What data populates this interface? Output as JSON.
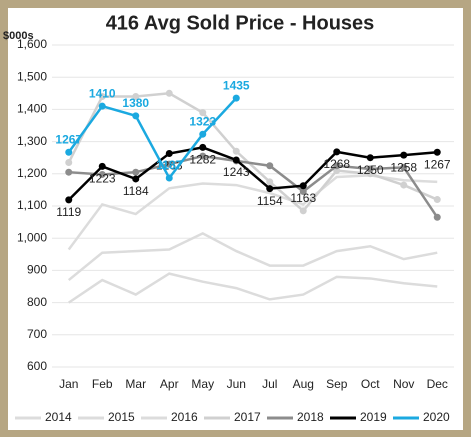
{
  "chart_data": {
    "type": "line",
    "title": "416 Avg Sold Price - Houses",
    "y_label": "$000s",
    "categories": [
      "Jan",
      "Feb",
      "Mar",
      "Apr",
      "May",
      "Jun",
      "Jul",
      "Aug",
      "Sep",
      "Oct",
      "Nov",
      "Dec"
    ],
    "ylim": [
      600,
      1600
    ],
    "yticks": [
      600,
      700,
      800,
      900,
      {
        "value": 1000,
        "label": "1,000"
      },
      {
        "value": 1100,
        "label": "1,100"
      },
      {
        "value": 1200,
        "label": "1,200"
      },
      {
        "value": 1300,
        "label": "1,300"
      },
      {
        "value": 1400,
        "label": "1,400"
      },
      {
        "value": 1500,
        "label": "1,500"
      },
      {
        "value": 1600,
        "label": "1,600"
      }
    ],
    "grid": true,
    "series": [
      {
        "name": "2014",
        "color": "#dcdcdc",
        "values": [
          800,
          870,
          825,
          890,
          865,
          845,
          810,
          825,
          880,
          875,
          860,
          850
        ]
      },
      {
        "name": "2015",
        "color": "#dcdcdc",
        "values": [
          870,
          955,
          960,
          965,
          1015,
          960,
          915,
          915,
          960,
          975,
          935,
          955
        ]
      },
      {
        "name": "2016",
        "color": "#dcdcdc",
        "values": [
          965,
          1105,
          1075,
          1155,
          1170,
          1165,
          1140,
          1105,
          1190,
          1195,
          1180,
          1175
        ]
      },
      {
        "name": "2017",
        "color": "#d0d0d0",
        "marker": true,
        "values": [
          1235,
          1440,
          1440,
          1450,
          1390,
          1270,
          1175,
          1085,
          1210,
          1200,
          1165,
          1120
        ]
      },
      {
        "name": "2018",
        "color": "#8c8c8c",
        "marker": true,
        "values": [
          1205,
          1198,
          1205,
          1230,
          1255,
          1240,
          1225,
          1145,
          1225,
          1215,
          1220,
          1065
        ]
      },
      {
        "name": "2019",
        "color": "#000000",
        "marker": true,
        "labels": true,
        "values": [
          1119,
          1223,
          1184,
          1263,
          1282,
          1243,
          1154,
          1163,
          1268,
          1250,
          1258,
          1267
        ]
      },
      {
        "name": "2020",
        "color": "#1ba9e0",
        "marker": true,
        "labels": true,
        "values": [
          1267,
          1410,
          1380,
          1187,
          1323,
          1435,
          null,
          null,
          null,
          null,
          null,
          null
        ]
      }
    ]
  }
}
